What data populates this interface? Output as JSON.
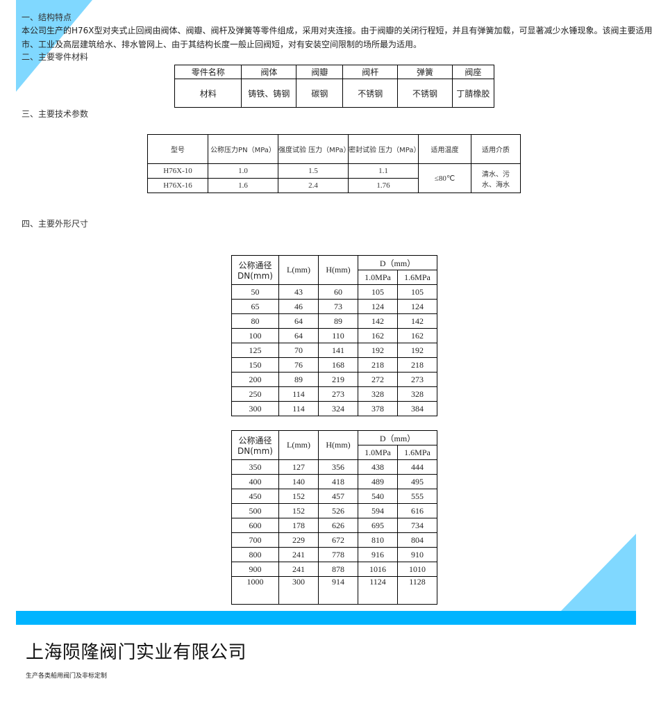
{
  "intro": {
    "h1": "一、结构特点",
    "p1": "本公司生产的H76X型对夹式止回阀由阀体、阀瓣、阀杆及弹簧等零件组成，采用对夹连接。由于阀瓣的关闭行程短，并且有弹簧加载，可显著减少水锤现象。该阀主要适用于",
    "p2": "市、工业及高层建筑给水、排水管网上、由于其结构长度一般止回阀短，对有安装空间限制的场所最为适用。",
    "h2": "二、主要零件材料",
    "h3": "三、主要技术参数",
    "h4": "四、主要外形尺寸"
  },
  "materials": {
    "headers": [
      "零件名称",
      "阀体",
      "阀瓣",
      "阀杆",
      "弹簧",
      "阀座"
    ],
    "row": [
      "材料",
      "铸铁、铸钢",
      "碳钢",
      "不锈钢",
      "不锈钢",
      "丁腈橡胶"
    ]
  },
  "params": {
    "headers": [
      "型号",
      "公称压力PN（MPa）",
      "强度试验 压力（MPa）",
      "密封试验 压力（MPa）",
      "适用温度",
      "适用介质"
    ],
    "rows": [
      [
        "H76X-10",
        "1.0",
        "1.5",
        "1.1"
      ],
      [
        "H76X-16",
        "1.6",
        "2.4",
        "1.76"
      ]
    ],
    "temp": "≤80℃",
    "medium": "清水、污水、海水"
  },
  "dims_header": {
    "dn": "公称通径DN(mm)",
    "l": "L(mm)",
    "h": "H(mm)",
    "d": "D（mm）",
    "d1": "1.0MPa",
    "d2": "1.6MPa"
  },
  "dims1": [
    [
      "50",
      "43",
      "60",
      "105",
      "105"
    ],
    [
      "65",
      "46",
      "73",
      "124",
      "124"
    ],
    [
      "80",
      "64",
      "89",
      "142",
      "142"
    ],
    [
      "100",
      "64",
      "110",
      "162",
      "162"
    ],
    [
      "125",
      "70",
      "141",
      "192",
      "192"
    ],
    [
      "150",
      "76",
      "168",
      "218",
      "218"
    ],
    [
      "200",
      "89",
      "219",
      "272",
      "273"
    ],
    [
      "250",
      "114",
      "273",
      "328",
      "328"
    ],
    [
      "300",
      "114",
      "324",
      "378",
      "384"
    ]
  ],
  "dims2": [
    [
      "350",
      "127",
      "356",
      "438",
      "444"
    ],
    [
      "400",
      "140",
      "418",
      "489",
      "495"
    ],
    [
      "450",
      "152",
      "457",
      "540",
      "555"
    ],
    [
      "500",
      "152",
      "526",
      "594",
      "616"
    ],
    [
      "600",
      "178",
      "626",
      "695",
      "734"
    ],
    [
      "700",
      "229",
      "672",
      "810",
      "804"
    ],
    [
      "800",
      "241",
      "778",
      "916",
      "910"
    ],
    [
      "900",
      "241",
      "878",
      "1016",
      "1010"
    ],
    [
      "1000",
      "300",
      "914",
      "1124",
      "1128"
    ]
  ],
  "footer": {
    "company": "上海陨隆阀门实业有限公司",
    "slogan": "生产各类船用阀门及非标定制"
  },
  "colors": {
    "accent": "#00b4ff",
    "triangle": "#80d8ff"
  }
}
